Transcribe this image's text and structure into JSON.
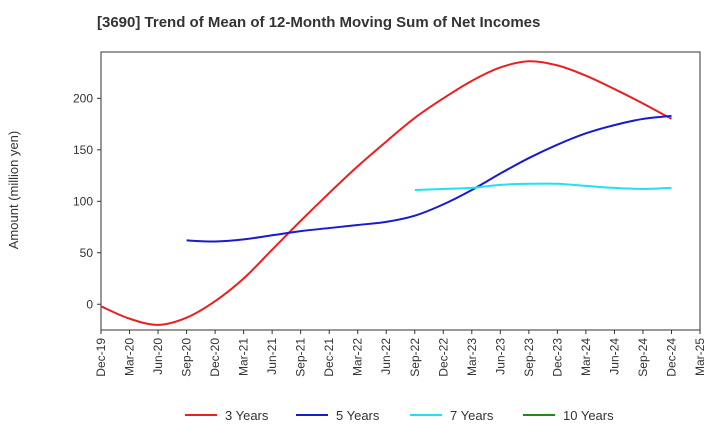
{
  "chart_data": {
    "type": "line",
    "title": "[3690]  Trend of Mean of 12-Month Moving Sum of Net Incomes",
    "ylabel": "Amount (million yen)",
    "xlabel": "",
    "x_ticks": [
      "Dec-19",
      "Mar-20",
      "Jun-20",
      "Sep-20",
      "Dec-20",
      "Mar-21",
      "Jun-21",
      "Sep-21",
      "Dec-21",
      "Mar-22",
      "Jun-22",
      "Sep-22",
      "Dec-22",
      "Mar-23",
      "Jun-23",
      "Sep-23",
      "Dec-23",
      "Mar-24",
      "Jun-24",
      "Sep-24",
      "Dec-24",
      "Mar-25"
    ],
    "y_ticks": [
      0,
      50,
      100,
      150,
      200
    ],
    "ylim": [
      -25,
      245
    ],
    "grid": true,
    "legend_position": "bottom",
    "series": [
      {
        "name": "3 Years",
        "color": "#e8201f",
        "points": [
          [
            "Dec-19",
            -2
          ],
          [
            "Mar-20",
            -14
          ],
          [
            "Jun-20",
            -20
          ],
          [
            "Sep-20",
            -13
          ],
          [
            "Dec-20",
            3
          ],
          [
            "Mar-21",
            25
          ],
          [
            "Jun-21",
            53
          ],
          [
            "Sep-21",
            81
          ],
          [
            "Dec-21",
            108
          ],
          [
            "Mar-22",
            134
          ],
          [
            "Jun-22",
            158
          ],
          [
            "Sep-22",
            181
          ],
          [
            "Dec-22",
            200
          ],
          [
            "Mar-23",
            217
          ],
          [
            "Jun-23",
            230
          ],
          [
            "Sep-23",
            236
          ],
          [
            "Dec-23",
            232
          ],
          [
            "Mar-24",
            222
          ],
          [
            "Jun-24",
            209
          ],
          [
            "Sep-24",
            195
          ],
          [
            "Dec-24",
            180
          ]
        ]
      },
      {
        "name": "5 Years",
        "color": "#1a1acf",
        "points": [
          [
            "Sep-20",
            62
          ],
          [
            "Dec-20",
            61
          ],
          [
            "Mar-21",
            63
          ],
          [
            "Jun-21",
            67
          ],
          [
            "Sep-21",
            71
          ],
          [
            "Dec-21",
            74
          ],
          [
            "Mar-22",
            77
          ],
          [
            "Jun-22",
            80
          ],
          [
            "Sep-22",
            86
          ],
          [
            "Dec-22",
            97
          ],
          [
            "Mar-23",
            111
          ],
          [
            "Jun-23",
            127
          ],
          [
            "Sep-23",
            142
          ],
          [
            "Dec-23",
            155
          ],
          [
            "Mar-24",
            166
          ],
          [
            "Jun-24",
            174
          ],
          [
            "Sep-24",
            180
          ],
          [
            "Dec-24",
            183
          ]
        ]
      },
      {
        "name": "7 Years",
        "color": "#22e0f0",
        "points": [
          [
            "Sep-22",
            111
          ],
          [
            "Dec-22",
            112
          ],
          [
            "Mar-23",
            113
          ],
          [
            "Jun-23",
            116
          ],
          [
            "Sep-23",
            117
          ],
          [
            "Dec-23",
            117
          ],
          [
            "Mar-24",
            115
          ],
          [
            "Jun-24",
            113
          ],
          [
            "Sep-24",
            112
          ],
          [
            "Dec-24",
            113
          ]
        ]
      },
      {
        "name": "10 Years",
        "color": "#1e8a1e",
        "points": []
      }
    ]
  }
}
